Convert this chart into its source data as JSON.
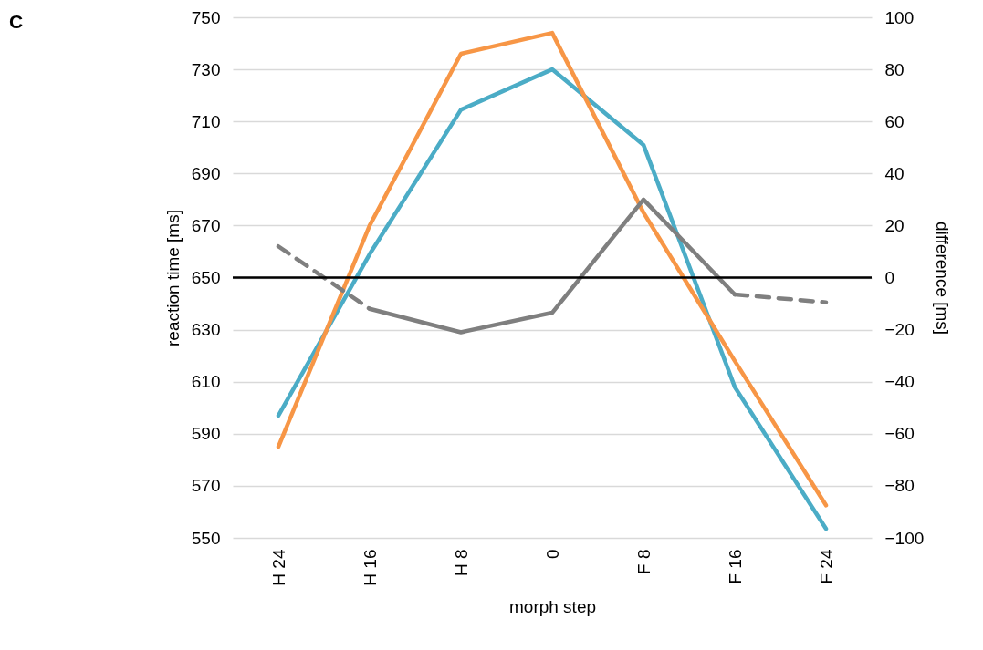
{
  "chart_data": {
    "type": "line",
    "title": "C",
    "xlabel": "morph step",
    "ylabel": "reaction time [ms]",
    "y2label": "difference [ms]",
    "categories": [
      "H 24",
      "H 16",
      "H 8",
      "0",
      "F 8",
      "F 16",
      "F 24"
    ],
    "series": [
      {
        "color": "#4bacc6",
        "values": [
          597,
          659,
          714.5,
          730,
          701,
          608,
          553.5
        ]
      },
      {
        "color": "#f79646",
        "values": [
          585,
          670,
          736,
          744,
          675,
          618,
          562.5
        ]
      },
      {
        "color": "#7f7f7f",
        "axis": "y2",
        "line_style": "dashed",
        "values": [
          12,
          -12,
          null,
          null,
          null,
          -6.5,
          -9.5
        ]
      },
      {
        "color": "#7f7f7f",
        "axis": "y2",
        "line_style": "solid",
        "values": [
          null,
          -12,
          -21,
          -13.5,
          30,
          -6.5,
          null
        ]
      }
    ],
    "ylim": [
      550,
      750
    ],
    "yticks": [
      550,
      570,
      590,
      610,
      630,
      650,
      670,
      690,
      710,
      730,
      750
    ],
    "y2lim": [
      -100,
      100
    ],
    "y2ticks": [
      -100,
      -80,
      -60,
      -40,
      -20,
      0,
      20,
      40,
      60,
      80,
      100
    ],
    "grid": "y",
    "ref_lines": [
      {
        "axis": "y2",
        "value": 0,
        "color": "#000000"
      }
    ]
  }
}
